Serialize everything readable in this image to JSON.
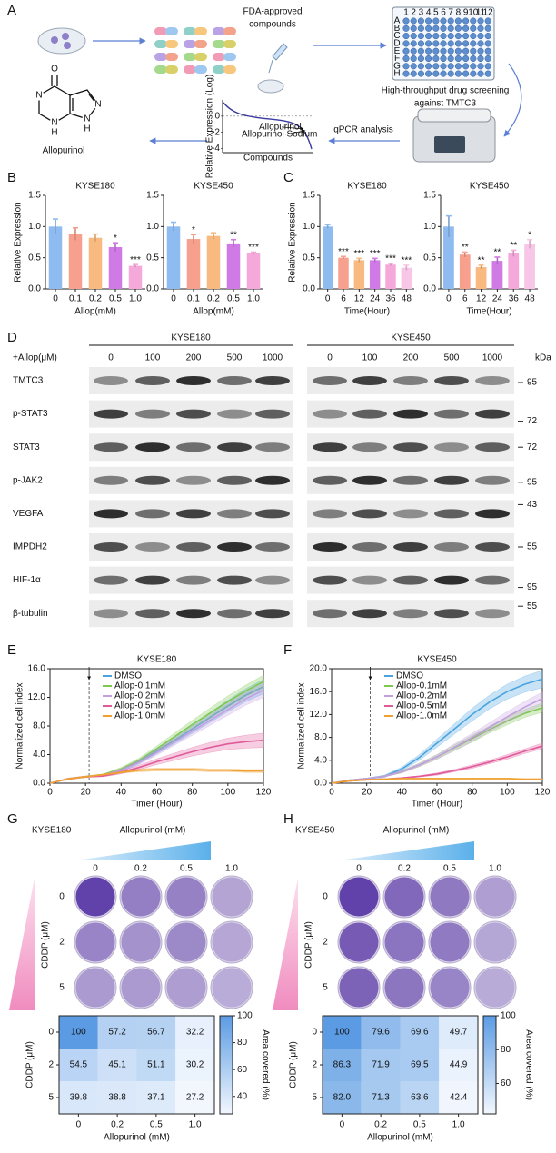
{
  "panel_labels": [
    "A",
    "B",
    "C",
    "D",
    "E",
    "F",
    "G",
    "H"
  ],
  "panel_a": {
    "compounds_label": [
      "FDA-approved",
      "compounds"
    ],
    "screening_label": [
      "High-throughput drug screening",
      "against TMTC3"
    ],
    "qpcr_label": "qPCR analysis",
    "molecule_label": "Allopurinol",
    "atoms": [
      "O",
      "N",
      "N",
      "H",
      "N",
      "H",
      "N"
    ],
    "plate_rows": [
      "A",
      "B",
      "C",
      "D",
      "E",
      "F",
      "G",
      "H"
    ],
    "plate_cols": [
      "1",
      "2",
      "3",
      "4",
      "5",
      "6",
      "7",
      "8",
      "9",
      "10",
      "11",
      "12"
    ],
    "mini_plot": {
      "y_label": "Relative Expression (Log)",
      "x_label": "Compounds",
      "ylim": [
        -4.5,
        2
      ],
      "yticks": [
        0,
        -2,
        -4
      ],
      "annotations": [
        "Allopurinol",
        "Allopurinol Sodium"
      ]
    }
  },
  "chart_data": [
    {
      "type": "bar",
      "title": "KYSE180",
      "categories": [
        "0",
        "0.1",
        "0.2",
        "0.5",
        "1.0"
      ],
      "values": [
        1.0,
        0.88,
        0.82,
        0.67,
        0.37
      ],
      "errors": [
        0.12,
        0.1,
        0.06,
        0.07,
        0.02
      ],
      "significance": [
        null,
        null,
        null,
        "*",
        "***"
      ],
      "colors": [
        "#8fbcf0",
        "#f7a08d",
        "#f8ba80",
        "#d07ae6",
        "#f5a8da"
      ],
      "ylim": [
        0,
        1.5
      ],
      "yticks": [
        {
          "value": 0,
          "label": "0.0"
        },
        0.5,
        {
          "value": 1,
          "label": "1.0"
        },
        1.5
      ],
      "y_label": "Relative Expression",
      "x_label": "Allop(mM)"
    },
    {
      "type": "bar",
      "title": "KYSE450",
      "categories": [
        "0",
        "0.1",
        "0.2",
        "0.5",
        "1.0"
      ],
      "values": [
        1.0,
        0.8,
        0.85,
        0.73,
        0.57
      ],
      "errors": [
        0.07,
        0.07,
        0.05,
        0.06,
        0.02
      ],
      "significance": [
        null,
        "*",
        null,
        "**",
        "***"
      ],
      "colors": [
        "#8fbcf0",
        "#f7a08d",
        "#f8ba80",
        "#d07ae6",
        "#f5a8da"
      ],
      "ylim": [
        0,
        1.5
      ],
      "yticks": [
        {
          "value": 0,
          "label": "0.0"
        },
        0.5,
        {
          "value": 1,
          "label": "1.0"
        },
        1.5
      ],
      "x_label": "Allop(mM)"
    },
    {
      "type": "bar",
      "title": "KYSE180",
      "categories": [
        "0",
        "6",
        "12",
        "24",
        "36",
        "48"
      ],
      "values": [
        1.0,
        0.5,
        0.46,
        0.46,
        0.39,
        0.34
      ],
      "errors": [
        0.03,
        0.02,
        0.03,
        0.03,
        0.02,
        0.04
      ],
      "significance": [
        null,
        "***",
        "***",
        "***",
        "***",
        "***"
      ],
      "colors": [
        "#8fbcf0",
        "#f7a08d",
        "#f8ba80",
        "#d07ae6",
        "#f5a8da",
        "#f8c6e6"
      ],
      "ylim": [
        0,
        1.5
      ],
      "yticks": [
        {
          "value": 0,
          "label": "0.0"
        },
        0.5,
        {
          "value": 1,
          "label": "1.0"
        },
        1.5
      ],
      "y_label": "Relative Expression",
      "x_label": "Time(Hour)"
    },
    {
      "type": "bar",
      "title": "KYSE450",
      "categories": [
        "0",
        "6",
        "12",
        "24",
        "36",
        "48"
      ],
      "values": [
        1.0,
        0.55,
        0.35,
        0.45,
        0.57,
        0.72
      ],
      "errors": [
        0.17,
        0.04,
        0.03,
        0.06,
        0.05,
        0.07
      ],
      "significance": [
        null,
        "**",
        "**",
        "**",
        "**",
        "*"
      ],
      "colors": [
        "#8fbcf0",
        "#f7a08d",
        "#f8ba80",
        "#d07ae6",
        "#f5a8da",
        "#f8c6e6"
      ],
      "ylim": [
        0,
        1.5
      ],
      "yticks": [
        {
          "value": 0,
          "label": "0.0"
        },
        0.5,
        {
          "value": 1,
          "label": "1.0"
        },
        1.5
      ],
      "x_label": "Time(Hour)"
    },
    {
      "type": "line",
      "title": "KYSE180",
      "x": [
        0,
        10,
        20,
        30,
        40,
        50,
        60,
        70,
        80,
        90,
        100,
        110,
        120
      ],
      "xlim": [
        0,
        120
      ],
      "xticks": [
        0,
        20,
        40,
        60,
        80,
        100,
        120
      ],
      "ylim": [
        0,
        16
      ],
      "yticks": [
        {
          "value": 0,
          "label": "0.0"
        },
        {
          "value": 4,
          "label": "4.0"
        },
        {
          "value": 8,
          "label": "8.0"
        },
        {
          "value": 12,
          "label": "12.0"
        },
        {
          "value": 16,
          "label": "16.0"
        }
      ],
      "x_label": "Timer (Hour)",
      "y_label": "Normalized cell index",
      "vline_x": 22,
      "legend": "upper left",
      "series": [
        {
          "name": "DMSO",
          "color": "#4aa3df",
          "values": [
            0,
            0.6,
            0.9,
            1.1,
            1.8,
            3.0,
            4.5,
            6.0,
            7.6,
            9.2,
            10.8,
            12.3,
            13.5
          ],
          "errors": [
            0,
            0.1,
            0.1,
            0.1,
            0.2,
            0.3,
            0.4,
            0.5,
            0.6,
            0.7,
            0.8,
            0.9,
            1.0
          ]
        },
        {
          "name": "Allop-0.1mM",
          "color": "#7ec850",
          "values": [
            0,
            0.6,
            0.9,
            1.2,
            2.0,
            3.2,
            4.8,
            6.5,
            8.2,
            9.8,
            11.4,
            12.9,
            14.2
          ],
          "errors": [
            0,
            0.1,
            0.1,
            0.1,
            0.2,
            0.3,
            0.4,
            0.5,
            0.6,
            0.7,
            0.8,
            0.8,
            0.9
          ]
        },
        {
          "name": "Allop-0.2mM",
          "color": "#c39ee0",
          "values": [
            0,
            0.6,
            0.9,
            1.1,
            1.8,
            2.9,
            4.3,
            5.8,
            7.3,
            8.8,
            10.3,
            11.8,
            13.0
          ],
          "errors": [
            0,
            0.1,
            0.1,
            0.1,
            0.2,
            0.3,
            0.4,
            0.5,
            0.6,
            0.7,
            0.8,
            0.9,
            1.0
          ]
        },
        {
          "name": "Allop-0.5mM",
          "color": "#e05a9a",
          "values": [
            0,
            0.6,
            0.9,
            1.0,
            1.5,
            2.2,
            3.0,
            3.7,
            4.4,
            5.0,
            5.5,
            5.8,
            6.0
          ],
          "errors": [
            0,
            0.1,
            0.1,
            0.1,
            0.2,
            0.3,
            0.4,
            0.5,
            0.6,
            0.7,
            0.8,
            0.9,
            1.0
          ]
        },
        {
          "name": "Allop-1.0mM",
          "color": "#f0a030",
          "values": [
            0,
            0.6,
            0.9,
            1.2,
            1.5,
            1.8,
            1.9,
            1.9,
            1.9,
            1.8,
            1.8,
            1.7,
            1.7
          ],
          "errors": [
            0,
            0.1,
            0.1,
            0.1,
            0.1,
            0.2,
            0.2,
            0.2,
            0.2,
            0.2,
            0.2,
            0.2,
            0.2
          ]
        }
      ]
    },
    {
      "type": "line",
      "title": "KYSE450",
      "x": [
        0,
        10,
        20,
        30,
        40,
        50,
        60,
        70,
        80,
        90,
        100,
        110,
        120
      ],
      "xlim": [
        0,
        120
      ],
      "xticks": [
        0,
        20,
        40,
        60,
        80,
        100,
        120
      ],
      "ylim": [
        0,
        20
      ],
      "yticks": [
        {
          "value": 0,
          "label": "0.0"
        },
        {
          "value": 4,
          "label": "4.0"
        },
        {
          "value": 8,
          "label": "8.0"
        },
        {
          "value": 12,
          "label": "12.0"
        },
        {
          "value": 16,
          "label": "16.0"
        },
        {
          "value": 20,
          "label": "20.0"
        }
      ],
      "x_label": "Timer (Hour)",
      "y_label": "Normalized cell index",
      "vline_x": 22,
      "legend": "upper left",
      "series": [
        {
          "name": "DMSO",
          "color": "#4aa3df",
          "values": [
            0,
            0.5,
            0.8,
            1.2,
            2.5,
            4.5,
            7.0,
            9.5,
            12.0,
            14.2,
            16.0,
            17.3,
            18.2
          ],
          "errors": [
            0,
            0.1,
            0.1,
            0.2,
            0.3,
            0.5,
            0.7,
            0.9,
            1.1,
            1.2,
            1.3,
            1.4,
            1.5
          ]
        },
        {
          "name": "Allop-0.1mM",
          "color": "#7ec850",
          "values": [
            0,
            0.5,
            0.8,
            1.2,
            2.0,
            3.2,
            4.6,
            6.2,
            7.8,
            9.4,
            10.9,
            12.2,
            13.2
          ],
          "errors": [
            0,
            0.1,
            0.1,
            0.1,
            0.2,
            0.3,
            0.4,
            0.5,
            0.6,
            0.6,
            0.7,
            0.7,
            0.8
          ]
        },
        {
          "name": "Allop-0.2mM",
          "color": "#c39ee0",
          "values": [
            0,
            0.5,
            0.8,
            1.2,
            2.0,
            3.2,
            4.6,
            6.3,
            8.0,
            9.8,
            11.6,
            13.3,
            14.8
          ],
          "errors": [
            0,
            0.1,
            0.1,
            0.1,
            0.2,
            0.3,
            0.4,
            0.6,
            0.7,
            0.8,
            0.9,
            1.0,
            1.1
          ]
        },
        {
          "name": "Allop-0.5mM",
          "color": "#e05a9a",
          "values": [
            0,
            0.4,
            0.6,
            0.7,
            0.9,
            1.2,
            1.6,
            2.2,
            2.9,
            3.7,
            4.6,
            5.6,
            6.5
          ],
          "errors": [
            0,
            0.1,
            0.1,
            0.1,
            0.1,
            0.1,
            0.2,
            0.2,
            0.3,
            0.3,
            0.4,
            0.4,
            0.5
          ]
        },
        {
          "name": "Allop-1.0mM",
          "color": "#f0a030",
          "values": [
            0,
            0.4,
            0.6,
            0.7,
            0.8,
            0.8,
            0.8,
            0.8,
            0.8,
            0.8,
            0.8,
            0.7,
            0.7
          ],
          "errors": [
            0,
            0.1,
            0.1,
            0.1,
            0.1,
            0.1,
            0.1,
            0.1,
            0.1,
            0.1,
            0.1,
            0.1,
            0.1
          ]
        }
      ]
    },
    {
      "type": "heatmap",
      "rows": [
        "0",
        "2",
        "5"
      ],
      "columns": [
        "0",
        "0.2",
        "0.5",
        "1.0"
      ],
      "values": [
        [
          100,
          57.2,
          56.7,
          32.2
        ],
        [
          54.5,
          45.1,
          51.1,
          30.2
        ],
        [
          39.8,
          38.8,
          37.1,
          27.2
        ]
      ],
      "x_label": "Allopurinol (mM)",
      "y_label": "CDDP (μM)",
      "colors": [
        "#f2f7fe",
        "#5b9be3"
      ],
      "colorbar": {
        "label": "Area covered (%)",
        "zlim": [
          27,
          100
        ],
        "ticks": [
          40,
          60,
          80,
          100
        ]
      }
    },
    {
      "type": "heatmap",
      "rows": [
        "0",
        "2",
        "5"
      ],
      "columns": [
        "0",
        "0.2",
        "0.5",
        "1.0"
      ],
      "values": [
        [
          100,
          79.6,
          69.6,
          49.7
        ],
        [
          86.3,
          71.9,
          69.5,
          44.9
        ],
        [
          82,
          71.3,
          63.6,
          42.4
        ]
      ],
      "value_labels": [
        [
          "100",
          "79.6",
          "69.6",
          "49.7"
        ],
        [
          "86.3",
          "71.9",
          "69.5",
          "44.9"
        ],
        [
          "82.0",
          "71.3",
          "63.6",
          "42.4"
        ]
      ],
      "x_label": "Allopurinol (mM)",
      "y_label": "CDDP (μM)",
      "colors": [
        "#f2f7fe",
        "#5b9be3"
      ],
      "colorbar": {
        "label": "Area covered (%)",
        "zlim": [
          42,
          100
        ],
        "ticks": [
          60,
          80,
          100
        ]
      }
    }
  ],
  "western_blot": {
    "cell_lines": [
      "KYSE180",
      "KYSE450"
    ],
    "treatment_label": "+Allop(μM)",
    "doses": [
      "0",
      "100",
      "200",
      "500",
      "1000"
    ],
    "kda_label": "kDa",
    "proteins": [
      "TMTC3",
      "p-STAT3",
      "STAT3",
      "p-JAK2",
      "VEGFA",
      "IMPDH2",
      "HIF-1α",
      "β-tubulin"
    ],
    "markers": [
      "95",
      "72",
      "72",
      "95",
      "43",
      "55",
      "95",
      "55"
    ]
  },
  "colonies": [
    {
      "title": "KYSE180",
      "x_label": "Allopurinol (mM)",
      "y_label": "CDDP (μM)"
    },
    {
      "title": "KYSE450",
      "x_label": "Allopurinol (mM)",
      "y_label": "CDDP (μM)"
    }
  ]
}
